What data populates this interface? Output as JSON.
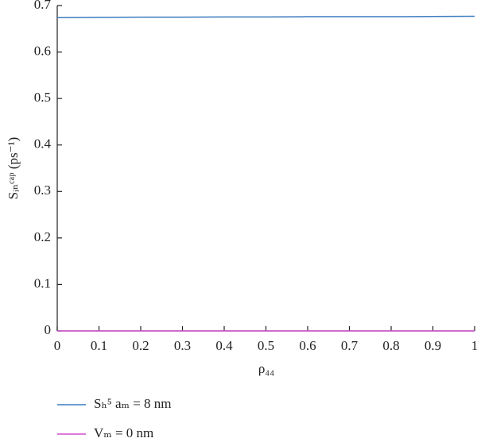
{
  "chart_data": {
    "type": "line",
    "xlabel": "ρ₄₄",
    "ylabel": "Sᵢₙᶜᵃᵖ (ps⁻¹)",
    "x": [
      0,
      0.1,
      0.2,
      0.3,
      0.4,
      0.5,
      0.6,
      0.7,
      0.8,
      0.9,
      1
    ],
    "series": [
      {
        "name": "Sₕ⁵ aₘ = 8 nm",
        "color": "#3a7bbf",
        "values": [
          0.674,
          0.6745,
          0.675,
          0.675,
          0.6755,
          0.6755,
          0.676,
          0.676,
          0.676,
          0.6765,
          0.677
        ]
      },
      {
        "name": "Vₘ = 0 nm",
        "color": "#d04fcf",
        "values": [
          0,
          0,
          0,
          0,
          0,
          0,
          0,
          0,
          0,
          0,
          0
        ]
      }
    ],
    "xlim": [
      0,
      1
    ],
    "xticks": [
      0,
      0.1,
      0.2,
      0.3,
      0.4,
      0.5,
      0.6,
      0.7,
      0.8,
      0.9,
      1
    ],
    "ylim": [
      0,
      0.7
    ],
    "yticks": [
      0,
      0.1,
      0.2,
      0.3,
      0.4,
      0.5,
      0.6,
      0.7
    ]
  }
}
